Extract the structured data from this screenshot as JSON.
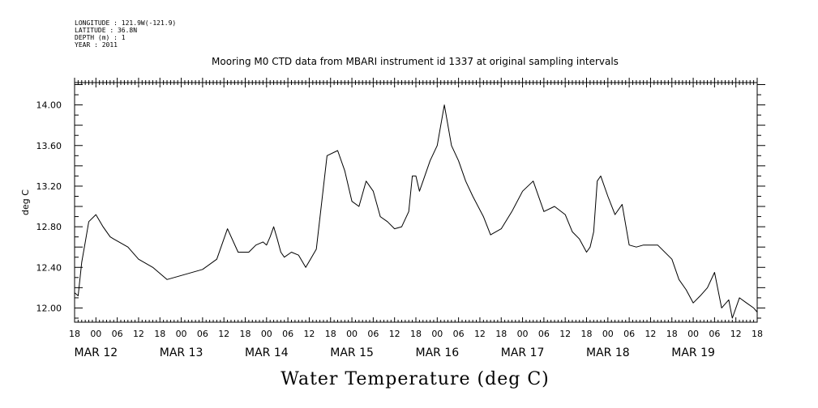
{
  "meta": {
    "longitude": "LONGITUDE : 121.9W(-121.9)",
    "latitude": "LATITUDE : 36.8N",
    "depth": "DEPTH (m) : 1",
    "year": "YEAR : 2011"
  },
  "chart_data": {
    "type": "line",
    "title": "Mooring M0 CTD data from MBARI instrument id 1337 at original sampling intervals",
    "xlabel": "Water Temperature (deg C)",
    "ylabel": "deg C",
    "ylim": [
      11.86,
      14.22
    ],
    "yticks": [
      "12.00",
      "12.40",
      "12.80",
      "13.20",
      "13.60",
      "14.00"
    ],
    "xlim": [
      "2011-03-11T18:00",
      "2011-03-19T18:00"
    ],
    "x_tick_hours": [
      "18",
      "00",
      "06",
      "12",
      "18",
      "00",
      "06",
      "12",
      "18",
      "00",
      "06",
      "12",
      "18",
      "00",
      "06",
      "12",
      "18",
      "00",
      "06",
      "12",
      "18",
      "00",
      "06",
      "12",
      "18",
      "00",
      "06",
      "12",
      "18",
      "00",
      "06",
      "12",
      "18"
    ],
    "x_date_labels": [
      "MAR 12",
      "MAR 13",
      "MAR 14",
      "MAR 15",
      "MAR 16",
      "MAR 17",
      "MAR 18",
      "MAR 19"
    ],
    "grid": false,
    "series": [
      {
        "color": "#000000",
        "x": [
          "2011-03-11T18:00",
          "2011-03-11T19:00",
          "2011-03-11T20:00",
          "2011-03-11T21:00",
          "2011-03-11T22:00",
          "2011-03-12T00:00",
          "2011-03-12T02:00",
          "2011-03-12T04:00",
          "2011-03-12T05:00",
          "2011-03-12T07:00",
          "2011-03-12T09:00",
          "2011-03-12T12:00",
          "2011-03-12T16:00",
          "2011-03-12T20:00",
          "2011-03-13T00:00",
          "2011-03-13T06:00",
          "2011-03-13T10:00",
          "2011-03-13T13:00",
          "2011-03-13T16:00",
          "2011-03-13T19:00",
          "2011-03-13T21:00",
          "2011-03-13T23:00",
          "2011-03-14T00:00",
          "2011-03-14T01:00",
          "2011-03-14T02:00",
          "2011-03-14T03:00",
          "2011-03-14T04:00",
          "2011-03-14T05:00",
          "2011-03-14T07:00",
          "2011-03-14T09:00",
          "2011-03-14T11:00",
          "2011-03-14T14:00",
          "2011-03-14T17:00",
          "2011-03-14T20:00",
          "2011-03-14T22:00",
          "2011-03-15T00:00",
          "2011-03-15T02:00",
          "2011-03-15T04:00",
          "2011-03-15T06:00",
          "2011-03-15T08:00",
          "2011-03-15T10:00",
          "2011-03-15T12:00",
          "2011-03-15T14:00",
          "2011-03-15T16:00",
          "2011-03-15T17:00",
          "2011-03-15T18:00",
          "2011-03-15T19:00",
          "2011-03-15T20:00",
          "2011-03-15T22:00",
          "2011-03-16T00:00",
          "2011-03-16T02:00",
          "2011-03-16T04:00",
          "2011-03-16T06:00",
          "2011-03-16T08:00",
          "2011-03-16T10:00",
          "2011-03-16T13:00",
          "2011-03-16T15:00",
          "2011-03-16T18:00",
          "2011-03-16T21:00",
          "2011-03-17T00:00",
          "2011-03-17T03:00",
          "2011-03-17T06:00",
          "2011-03-17T09:00",
          "2011-03-17T12:00",
          "2011-03-17T14:00",
          "2011-03-17T16:00",
          "2011-03-17T18:00",
          "2011-03-17T19:00",
          "2011-03-17T20:00",
          "2011-03-17T21:00",
          "2011-03-17T22:00",
          "2011-03-18T00:00",
          "2011-03-18T02:00",
          "2011-03-18T04:00",
          "2011-03-18T06:00",
          "2011-03-18T08:00",
          "2011-03-18T10:00",
          "2011-03-18T14:00",
          "2011-03-18T18:00",
          "2011-03-18T20:00",
          "2011-03-18T22:00",
          "2011-03-19T00:00",
          "2011-03-19T02:00",
          "2011-03-19T04:00",
          "2011-03-19T06:00",
          "2011-03-19T08:00",
          "2011-03-19T10:00",
          "2011-03-19T11:00",
          "2011-03-19T13:00",
          "2011-03-19T15:00",
          "2011-03-19T17:00",
          "2011-03-19T18:00"
        ],
        "y": [
          12.15,
          12.12,
          12.45,
          12.65,
          12.85,
          12.92,
          12.8,
          12.7,
          12.68,
          12.64,
          12.6,
          12.48,
          12.4,
          12.28,
          12.32,
          12.38,
          12.48,
          12.78,
          12.55,
          12.55,
          12.62,
          12.65,
          12.62,
          12.7,
          12.8,
          12.68,
          12.55,
          12.5,
          12.55,
          12.52,
          12.4,
          12.58,
          13.5,
          13.55,
          13.35,
          13.05,
          13.0,
          13.25,
          13.15,
          12.9,
          12.85,
          12.78,
          12.8,
          12.95,
          13.3,
          13.3,
          13.15,
          13.25,
          13.45,
          13.6,
          14.0,
          13.6,
          13.45,
          13.25,
          13.1,
          12.9,
          12.72,
          12.78,
          12.95,
          13.15,
          13.25,
          12.95,
          13.0,
          12.92,
          12.75,
          12.68,
          12.55,
          12.6,
          12.75,
          13.25,
          13.3,
          13.1,
          12.92,
          13.02,
          12.62,
          12.6,
          12.62,
          12.62,
          12.48,
          12.28,
          12.18,
          12.05,
          12.12,
          12.2,
          12.35,
          12.0,
          12.08,
          11.9,
          12.1,
          12.05,
          12.0,
          11.96
        ]
      }
    ]
  }
}
